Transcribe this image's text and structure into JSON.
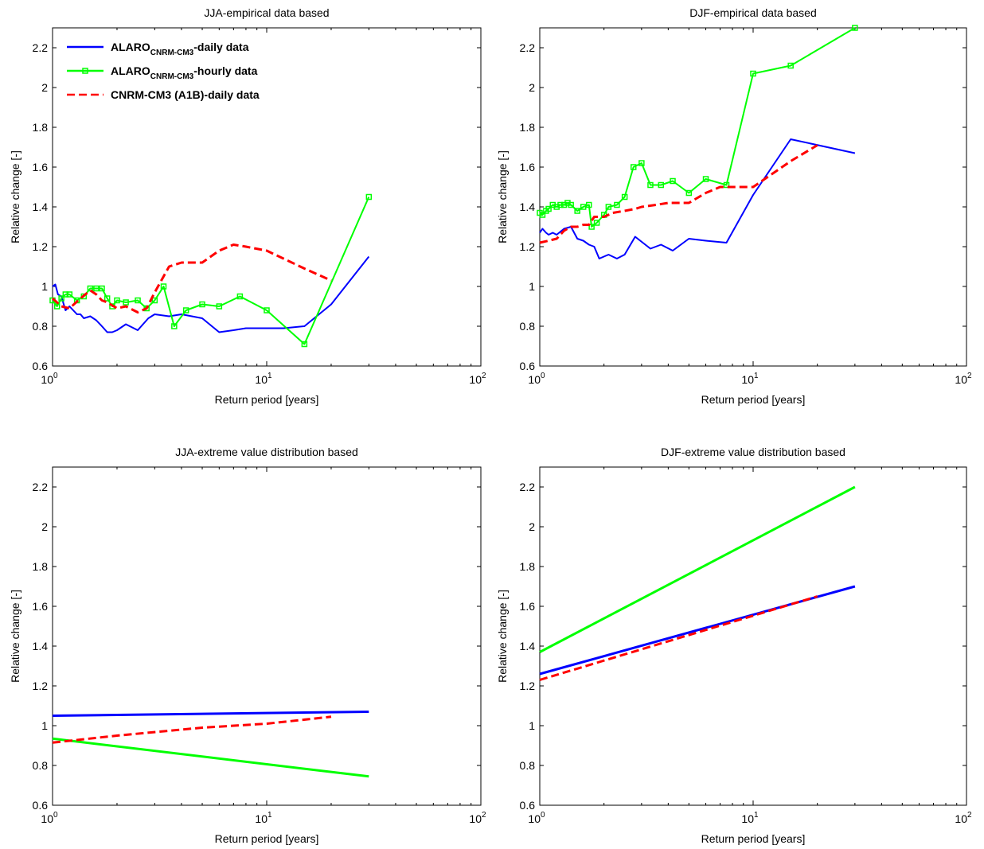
{
  "legend": {
    "entries": [
      {
        "main": "ALARO",
        "sub": "CNRM-CM3",
        "suffix": "-daily data",
        "color": "#0000ff"
      },
      {
        "main": "ALARO",
        "sub": "CNRM-CM3",
        "suffix": "-hourly data",
        "color": "#00ff00"
      },
      {
        "main": "CNRM-CM3 (A1B)-daily data",
        "sub": "",
        "suffix": "",
        "color": "#ff0000"
      }
    ]
  },
  "chart_data": [
    {
      "type": "line",
      "title": "JJA-empirical data based",
      "xlabel": "Return period [years]",
      "ylabel": "Relative change [-]",
      "xscale": "log",
      "xlim": [
        1,
        100
      ],
      "ylim": [
        0.6,
        2.3
      ],
      "yticks": [
        "0.6",
        "0.8",
        "1",
        "1.2",
        "1.4",
        "1.6",
        "1.8",
        "2",
        "2.2"
      ],
      "grid": false,
      "legend_position": "top-left",
      "series": [
        {
          "color": "#0000ff",
          "style": "solid",
          "x": [
            1.0,
            1.03,
            1.06,
            1.1,
            1.15,
            1.2,
            1.3,
            1.35,
            1.4,
            1.5,
            1.6,
            1.7,
            1.8,
            1.9,
            2.0,
            2.2,
            2.5,
            2.8,
            3.0,
            3.5,
            4.0,
            5.0,
            6.0,
            7.0,
            8.0,
            10.0,
            12.0,
            15.0,
            20.0,
            30.0
          ],
          "y": [
            1.0,
            1.01,
            0.96,
            0.95,
            0.88,
            0.9,
            0.86,
            0.86,
            0.84,
            0.85,
            0.83,
            0.8,
            0.77,
            0.77,
            0.78,
            0.81,
            0.78,
            0.84,
            0.86,
            0.85,
            0.86,
            0.84,
            0.77,
            0.78,
            0.79,
            0.79,
            0.79,
            0.8,
            0.91,
            1.15
          ]
        },
        {
          "color": "#00ff00",
          "style": "solid-square",
          "x": [
            1.0,
            1.05,
            1.1,
            1.15,
            1.2,
            1.3,
            1.4,
            1.5,
            1.6,
            1.7,
            1.8,
            1.9,
            2.0,
            2.2,
            2.5,
            2.75,
            3.0,
            3.3,
            3.7,
            4.2,
            5.0,
            6.0,
            7.5,
            10.0,
            15.0,
            30.0
          ],
          "y": [
            0.93,
            0.9,
            0.94,
            0.96,
            0.96,
            0.93,
            0.95,
            0.99,
            0.99,
            0.99,
            0.94,
            0.9,
            0.93,
            0.92,
            0.93,
            0.89,
            0.93,
            1.0,
            0.8,
            0.88,
            0.91,
            0.9,
            0.95,
            0.88,
            0.71,
            1.45
          ]
        },
        {
          "color": "#ff0000",
          "style": "dashed",
          "x": [
            1.0,
            1.1,
            1.2,
            1.35,
            1.5,
            1.6,
            1.7,
            1.8,
            2.0,
            2.2,
            2.5,
            2.75,
            3.0,
            3.5,
            4.0,
            5.0,
            6.0,
            7.0,
            8.0,
            10.0,
            15.0,
            20.0
          ],
          "y": [
            0.94,
            0.9,
            0.89,
            0.94,
            0.98,
            0.96,
            0.93,
            0.92,
            0.89,
            0.9,
            0.87,
            0.89,
            0.97,
            1.1,
            1.12,
            1.12,
            1.18,
            1.21,
            1.2,
            1.18,
            1.09,
            1.03
          ]
        }
      ]
    },
    {
      "type": "line",
      "title": "DJF-empirical data based",
      "xlabel": "Return period [years]",
      "ylabel": "Relative change [-]",
      "xscale": "log",
      "xlim": [
        1,
        100
      ],
      "ylim": [
        0.6,
        2.3
      ],
      "yticks": [
        "0.6",
        "0.8",
        "1",
        "1.2",
        "1.4",
        "1.6",
        "1.8",
        "2",
        "2.2"
      ],
      "grid": false,
      "series": [
        {
          "color": "#0000ff",
          "style": "solid",
          "x": [
            1.0,
            1.03,
            1.07,
            1.1,
            1.15,
            1.2,
            1.3,
            1.4,
            1.5,
            1.6,
            1.7,
            1.8,
            1.9,
            2.1,
            2.3,
            2.5,
            2.8,
            3.3,
            3.7,
            4.2,
            5.0,
            6.0,
            7.5,
            10.0,
            15.0,
            30.0
          ],
          "y": [
            1.27,
            1.29,
            1.27,
            1.26,
            1.27,
            1.26,
            1.29,
            1.3,
            1.24,
            1.23,
            1.21,
            1.2,
            1.14,
            1.16,
            1.14,
            1.16,
            1.25,
            1.19,
            1.21,
            1.18,
            1.24,
            1.23,
            1.22,
            1.46,
            1.74,
            1.67
          ]
        },
        {
          "color": "#00ff00",
          "style": "solid-square",
          "x": [
            1.0,
            1.03,
            1.07,
            1.1,
            1.15,
            1.2,
            1.25,
            1.3,
            1.35,
            1.4,
            1.5,
            1.6,
            1.7,
            1.75,
            1.85,
            2.0,
            2.1,
            2.3,
            2.5,
            2.75,
            3.0,
            3.3,
            3.7,
            4.2,
            5.0,
            6.0,
            7.5,
            10.0,
            15.0,
            30.0
          ],
          "y": [
            1.37,
            1.36,
            1.38,
            1.39,
            1.41,
            1.4,
            1.41,
            1.41,
            1.42,
            1.41,
            1.38,
            1.4,
            1.41,
            1.3,
            1.32,
            1.36,
            1.4,
            1.41,
            1.45,
            1.6,
            1.62,
            1.51,
            1.51,
            1.53,
            1.47,
            1.54,
            1.51,
            2.07,
            2.11,
            2.3
          ]
        },
        {
          "color": "#ff0000",
          "style": "dashed",
          "x": [
            1.0,
            1.1,
            1.2,
            1.3,
            1.4,
            1.5,
            1.6,
            1.7,
            1.8,
            2.0,
            2.2,
            2.5,
            2.8,
            3.0,
            3.5,
            4.0,
            5.0,
            6.0,
            7.0,
            8.0,
            10.0,
            15.0,
            20.0
          ],
          "y": [
            1.22,
            1.23,
            1.24,
            1.28,
            1.3,
            1.3,
            1.31,
            1.31,
            1.35,
            1.35,
            1.37,
            1.38,
            1.39,
            1.4,
            1.41,
            1.42,
            1.42,
            1.47,
            1.5,
            1.5,
            1.5,
            1.63,
            1.71
          ]
        }
      ]
    },
    {
      "type": "line",
      "title": "JJA-extreme value distribution based",
      "xlabel": "Return period [years]",
      "ylabel": "Relative change [-]",
      "xscale": "log",
      "xlim": [
        1,
        100
      ],
      "ylim": [
        0.6,
        2.3
      ],
      "yticks": [
        "0.6",
        "0.8",
        "1",
        "1.2",
        "1.4",
        "1.6",
        "1.8",
        "2",
        "2.2"
      ],
      "grid": false,
      "series": [
        {
          "color": "#0000ff",
          "style": "solid",
          "x": [
            1,
            30
          ],
          "y": [
            1.05,
            1.07
          ]
        },
        {
          "color": "#00ff00",
          "style": "solid",
          "x": [
            1,
            30
          ],
          "y": [
            0.935,
            0.745
          ]
        },
        {
          "color": "#ff0000",
          "style": "dashed",
          "x": [
            1,
            2,
            5,
            10,
            20
          ],
          "y": [
            0.915,
            0.95,
            0.99,
            1.01,
            1.045
          ]
        }
      ]
    },
    {
      "type": "line",
      "title": "DJF-extreme value distribution based",
      "xlabel": "Return period [years]",
      "ylabel": "Relative change [-]",
      "xscale": "log",
      "xlim": [
        1,
        100
      ],
      "ylim": [
        0.6,
        2.3
      ],
      "yticks": [
        "0.6",
        "0.8",
        "1",
        "1.2",
        "1.4",
        "1.6",
        "1.8",
        "2",
        "2.2"
      ],
      "grid": false,
      "series": [
        {
          "color": "#0000ff",
          "style": "solid",
          "x": [
            1,
            30
          ],
          "y": [
            1.26,
            1.7
          ]
        },
        {
          "color": "#00ff00",
          "style": "solid",
          "x": [
            1,
            30
          ],
          "y": [
            1.37,
            2.2
          ]
        },
        {
          "color": "#ff0000",
          "style": "dashed",
          "x": [
            1,
            20
          ],
          "y": [
            1.23,
            1.65
          ]
        }
      ]
    }
  ]
}
